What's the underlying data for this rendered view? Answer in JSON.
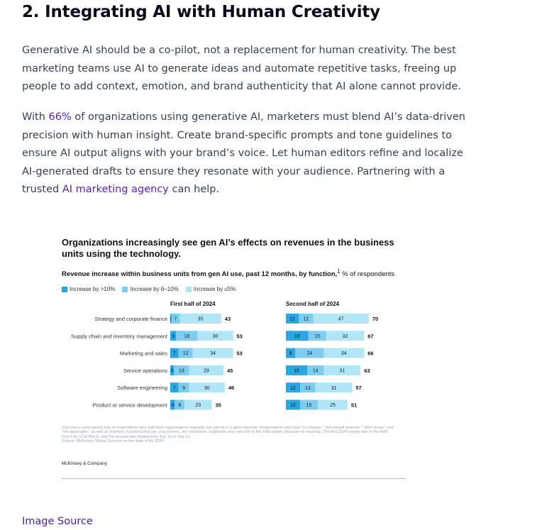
{
  "article": {
    "heading": "2. Integrating AI with Human Creativity",
    "p1": "Generative AI should be a co-pilot, not a replacement for human creativity. The best marketing teams use AI to generate ideas and automate repetitive tasks, freeing up people to add context, emotion, and brand authenticity that AI alone cannot provide.",
    "p2_a": "With ",
    "p2_link1": "66%",
    "p2_b": " of organizations using generative AI, marketers must blend AI’s data-driven precision with human insight. Create brand-specific prompts and tone guidelines to ensure AI output aligns with your brand’s voice. Let human editors refine and localize AI-generated drafts to ensure they resonate with your audience. Partnering with a trusted ",
    "p2_link2": "AI marketing agency",
    "p2_c": " can help.",
    "image_source": "Image Source",
    "link_color": "#5b21b6"
  },
  "figure": {
    "title": "Organizations increasingly see gen AI’s effects on revenues in the business units using the technology.",
    "subtitle_bold": "Revenue increase within business units from gen AI use, past 12 months, by function,",
    "subtitle_sup": "1",
    "subtitle_rest": " % of respondents",
    "footnote_1": "¹Questions were asked only of respondents who said their organizations regularly use gen AI in a given function. Respondents who said “no change,” “decreased revenue,” “don’t know,” and “not applicable,” as well as business functions that are cost centers, are not shown. Segments may not sum to the total shown, because of rounding. The first 2024 survey was in the field from Feb 22 to Mar 5, and the second was fielded from July 16 to July 31.",
    "footnote_2": "Source: McKinsey Global Surveys on the state of AI, 2024",
    "brand": "McKinsey & Company",
    "colors": {
      "gt10": "#2aa6e0",
      "6to10": "#7ccdf0",
      "le5": "#b0e6f8"
    }
  },
  "chart_data": {
    "type": "bar",
    "orientation": "horizontal",
    "stacked": true,
    "categories": [
      "Strategy and corporate finance",
      "Supply chain and inventory management",
      "Marketing and sales",
      "Service operations",
      "Software engineering",
      "Product or service development"
    ],
    "series_names": [
      "Increase by >10%",
      "Increase by 6–10%",
      "Increase by ≤5%"
    ],
    "panels": [
      {
        "title": "First half of 2024",
        "series": [
          {
            "name": "Increase by >10%",
            "values": [
              1,
              5,
              7,
              3,
              7,
              4
            ]
          },
          {
            "name": "Increase by 6–10%",
            "values": [
              7,
              18,
              12,
              13,
              9,
              8
            ]
          },
          {
            "name": "Increase by ≤5%",
            "values": [
              35,
              30,
              34,
              29,
              30,
              23
            ]
          }
        ],
        "totals": [
          43,
          53,
          53,
          45,
          46,
          35
        ]
      },
      {
        "title": "Second half of 2024",
        "series": [
          {
            "name": "Increase by >10%",
            "values": [
              11,
              19,
              8,
              18,
              12,
              12
            ]
          },
          {
            "name": "Increase by 6–10%",
            "values": [
              12,
              15,
              24,
              14,
              13,
              15
            ]
          },
          {
            "name": "Increase by ≤5%",
            "values": [
              47,
              32,
              34,
              31,
              31,
              25
            ]
          }
        ],
        "totals": [
          70,
          67,
          66,
          63,
          57,
          51
        ]
      }
    ]
  }
}
